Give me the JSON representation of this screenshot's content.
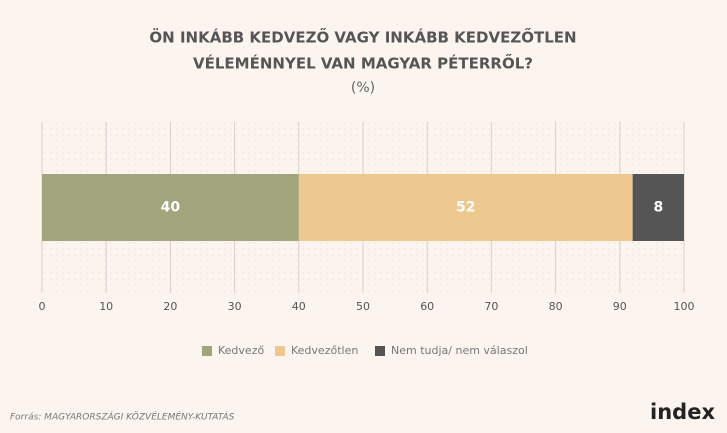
{
  "chart_data": {
    "type": "bar",
    "orientation": "horizontal",
    "stacked": true,
    "title": [
      "ÖN INKÁBB KEDVEZŐ VAGY INKÁBB KEDVEZŐTLEN",
      "VÉLEMÉNNYEL VAN MAGYAR PÉTERRŐL?"
    ],
    "subtitle": "(%)",
    "categories": [
      null
    ],
    "series": [
      {
        "name": "Kedvező",
        "color": "#a0a57c",
        "values": [
          40
        ]
      },
      {
        "name": "Kedvezőtlen",
        "color": "#edc98f",
        "values": [
          52
        ]
      },
      {
        "name": "Nem tudja/ nem válaszol",
        "color": "#555555",
        "values": [
          8
        ]
      }
    ],
    "xlim": [
      0,
      100
    ],
    "xticks": [
      0,
      10,
      20,
      30,
      40,
      50,
      60,
      70,
      80,
      90,
      100
    ],
    "grid": true,
    "legend": "bottom"
  },
  "source": "Forrás: MAGYARORSZÁGI KÖZVÉLEMÉNY-KUTATÁS",
  "logo": "index"
}
